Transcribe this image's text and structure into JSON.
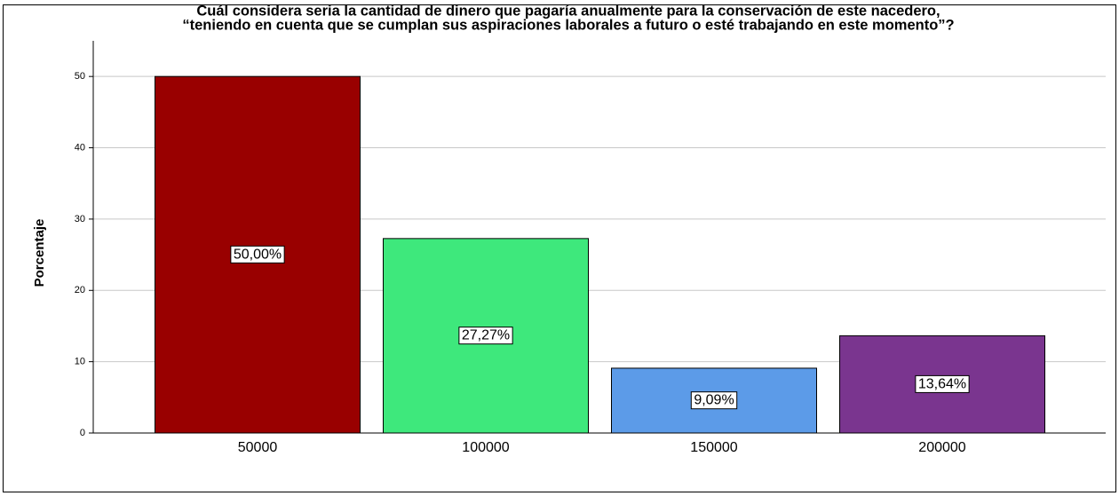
{
  "chart_data": {
    "type": "bar",
    "title": "Cuál considera seria la cantidad de dinero que pagaría anualmente para la conservación de este nacedero,",
    "subtitle": "“teniendo en cuenta que se cumplan sus aspiraciones laborales a futuro o esté trabajando en este momento”?",
    "y_label": "Porcentaje",
    "categories": [
      "50000",
      "100000",
      "150000",
      "200000"
    ],
    "values": [
      50,
      27.27,
      9.09,
      13.64
    ],
    "value_labels": [
      "50,00%",
      "27,27%",
      "9,09%",
      "13,64%"
    ],
    "colors": [
      "#990000",
      "#3ee87c",
      "#5c9be8",
      "#7a358f"
    ],
    "ylim": [
      0,
      55
    ],
    "yticks": [
      0,
      10,
      20,
      30,
      40,
      50
    ],
    "grid": true
  }
}
